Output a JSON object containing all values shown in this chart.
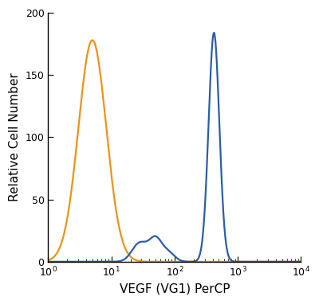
{
  "xlabel": "VEGF (VG1) PerCP",
  "ylabel": "Relative Cell Number",
  "xlim_log": [
    1,
    10000
  ],
  "ylim": [
    0,
    200
  ],
  "yticks": [
    0,
    50,
    100,
    150,
    200
  ],
  "orange_color": "#E8941A",
  "blue_color": "#2B5EA7",
  "bg_color": "#ffffff",
  "linewidth": 1.6,
  "orange_peak_x": 5.0,
  "orange_peak_y": 178,
  "orange_sigma": 0.22,
  "blue_hump1_x": 28,
  "blue_hump1_y": 15,
  "blue_hump1_sigma": 0.12,
  "blue_hump2_x": 50,
  "blue_hump2_y": 18,
  "blue_hump2_sigma": 0.1,
  "blue_hump3_x": 80,
  "blue_hump3_y": 7,
  "blue_hump3_sigma": 0.1,
  "blue_large_x": 420,
  "blue_large_y": 184,
  "blue_large_sigma": 0.085
}
